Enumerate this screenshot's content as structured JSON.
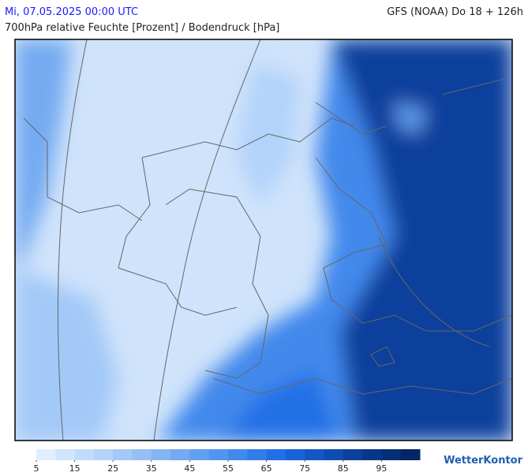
{
  "header": {
    "left": "Mi, 07.05.2025 00:00 UTC",
    "right": "GFS (NOAA) Do 18 + 126h",
    "subtitle": "700hPa relative Feuchte [Prozent] / Bodendruck [hPa]"
  },
  "colorbar": {
    "range": [
      5,
      105
    ],
    "ticks": [
      5,
      15,
      25,
      35,
      45,
      55,
      65,
      75,
      85,
      95
    ],
    "colors": [
      "#e0efff",
      "#cfe5fd",
      "#c0dcfb",
      "#b2d3fa",
      "#a3c9f8",
      "#94c0f6",
      "#84b5f3",
      "#74aaf1",
      "#639ff0",
      "#5394ee",
      "#4289ec",
      "#327cea",
      "#2270e6",
      "#1a63d6",
      "#1457c4",
      "#0f4caf",
      "#0b419c",
      "#083789",
      "#062e78",
      "#042566"
    ]
  },
  "logo": "WetterKontor"
}
